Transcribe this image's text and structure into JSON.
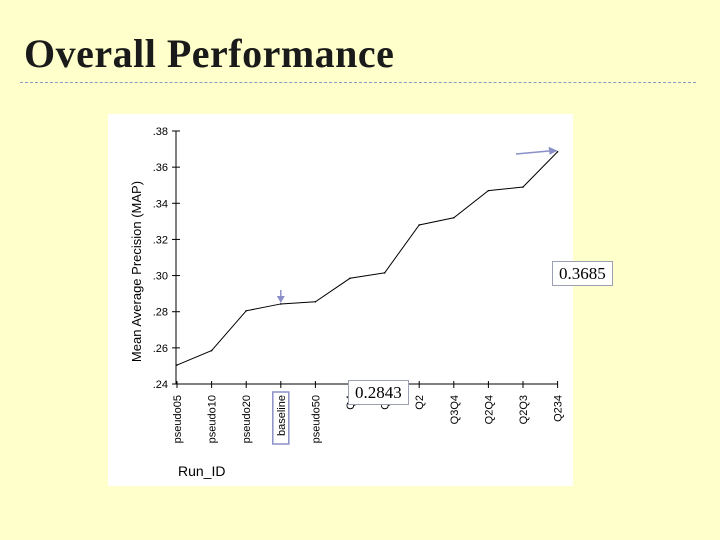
{
  "slide": {
    "title": "Overall Performance"
  },
  "callouts": {
    "max": "0.3685",
    "baseline": "0.2843"
  },
  "chart_data": {
    "type": "line",
    "title": "",
    "xlabel": "Run_ID",
    "ylabel": "Mean Average Precision (MAP)",
    "categories": [
      "pseudo05",
      "pseudo10",
      "pseudo20",
      "baseline",
      "pseudo50",
      "Q4",
      "Q3",
      "Q2",
      "Q3Q4",
      "Q2Q4",
      "Q2Q3",
      "Q234"
    ],
    "values": [
      0.2505,
      0.2585,
      0.2805,
      0.2843,
      0.2855,
      0.2985,
      0.3015,
      0.328,
      0.332,
      0.347,
      0.349,
      0.3685
    ],
    "ylim": [
      0.24,
      0.38
    ],
    "yticks": [
      ".24",
      ".26",
      ".28",
      ".30",
      ".32",
      ".34",
      ".36",
      ".38"
    ],
    "ytick_values": [
      0.24,
      0.26,
      0.28,
      0.3,
      0.32,
      0.34,
      0.36,
      0.38
    ],
    "highlighted_category": "baseline",
    "grid": false,
    "line_color": "#000000"
  }
}
